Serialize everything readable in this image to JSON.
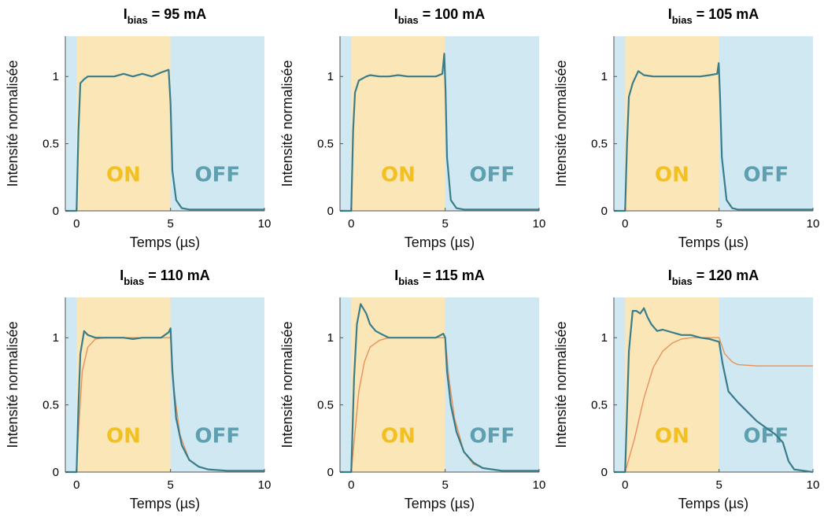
{
  "figure": {
    "title_prefix": "I",
    "title_sub": "bias",
    "colors": {
      "on_region": "#fbe6b8",
      "off_region": "#cfe8f1",
      "measured": "#3a7d8a",
      "model": "#e8915b",
      "on_text": "#f3c021",
      "off_text": "#5e9fb0"
    }
  },
  "chart_data": [
    {
      "type": "line",
      "title": "I bias = 95 mA",
      "title_value": "= 95 mA",
      "xlabel": "Temps (µs)",
      "ylabel": "Intensité normalisée",
      "xlim": [
        -0.6,
        10
      ],
      "ylim": [
        0,
        1.3
      ],
      "xticks": [
        "0",
        "5",
        "10"
      ],
      "yticks": [
        "0",
        "0.5",
        "1"
      ],
      "grid": false,
      "regions": [
        {
          "label": "ON",
          "x": [
            0,
            5
          ]
        },
        {
          "label": "OFF",
          "x": [
            5,
            10
          ]
        }
      ],
      "series": [
        {
          "x": [
            -0.6,
            0,
            0.1,
            0.2,
            0.4,
            0.6,
            1,
            1.5,
            2,
            2.5,
            3,
            3.5,
            4,
            4.5,
            4.9,
            5,
            5.1,
            5.3,
            5.6,
            6,
            7,
            8,
            10
          ],
          "values": [
            0,
            0,
            0.6,
            0.95,
            0.98,
            1.0,
            1.0,
            1.0,
            1.0,
            1.02,
            1.0,
            1.02,
            1.0,
            1.03,
            1.05,
            0.8,
            0.3,
            0.08,
            0.02,
            0.01,
            0.01,
            0.01,
            0.01
          ]
        }
      ]
    },
    {
      "type": "line",
      "title": "I bias = 100 mA",
      "title_value": "= 100 mA",
      "xlabel": "Temps (µs)",
      "ylabel": "Intensité normalisée",
      "xlim": [
        -0.6,
        10
      ],
      "ylim": [
        0,
        1.3
      ],
      "xticks": [
        "0",
        "5",
        "10"
      ],
      "yticks": [
        "0",
        "0.5",
        "1"
      ],
      "grid": false,
      "regions": [
        {
          "label": "ON",
          "x": [
            0,
            5
          ]
        },
        {
          "label": "OFF",
          "x": [
            5,
            10
          ]
        }
      ],
      "series": [
        {
          "x": [
            -0.6,
            0,
            0.1,
            0.2,
            0.4,
            0.8,
            1,
            1.5,
            2,
            2.5,
            3,
            3.5,
            4,
            4.5,
            4.85,
            4.95,
            5.02,
            5.1,
            5.3,
            5.6,
            6,
            7,
            8,
            10
          ],
          "values": [
            0,
            0,
            0.6,
            0.88,
            0.97,
            1.0,
            1.01,
            1.0,
            1.0,
            1.01,
            1.0,
            1.0,
            1.0,
            1.0,
            1.02,
            1.17,
            0.9,
            0.4,
            0.08,
            0.02,
            0.01,
            0.01,
            0.01,
            0.01
          ]
        }
      ]
    },
    {
      "type": "line",
      "title": "I bias = 105 mA",
      "title_value": "= 105 mA",
      "xlabel": "Temps (µs)",
      "ylabel": "Intensité normalisée",
      "xlim": [
        -0.6,
        10
      ],
      "ylim": [
        0,
        1.3
      ],
      "xticks": [
        "0",
        "5",
        "10"
      ],
      "yticks": [
        "0",
        "0.5",
        "1"
      ],
      "grid": false,
      "regions": [
        {
          "label": "ON",
          "x": [
            0,
            5
          ]
        },
        {
          "label": "OFF",
          "x": [
            5,
            10
          ]
        }
      ],
      "series": [
        {
          "x": [
            -0.6,
            0,
            0.1,
            0.2,
            0.4,
            0.7,
            1,
            1.5,
            2,
            2.5,
            3,
            3.5,
            4,
            4.5,
            4.9,
            4.98,
            5.05,
            5.15,
            5.4,
            5.7,
            6,
            7,
            8,
            10
          ],
          "values": [
            0,
            0,
            0.5,
            0.85,
            0.95,
            1.04,
            1.01,
            1.0,
            1.0,
            1.0,
            1.0,
            1.0,
            1.0,
            1.01,
            1.02,
            1.1,
            0.85,
            0.4,
            0.08,
            0.02,
            0.01,
            0.01,
            0.01,
            0.01
          ]
        }
      ]
    },
    {
      "type": "line",
      "title": "I bias = 110 mA",
      "title_value": "= 110 mA",
      "xlabel": "Temps (µs)",
      "ylabel": "Intensité normalisée",
      "xlim": [
        -0.6,
        10
      ],
      "ylim": [
        0,
        1.3
      ],
      "xticks": [
        "0",
        "5",
        "10"
      ],
      "yticks": [
        "0",
        "0.5",
        "1"
      ],
      "grid": false,
      "regions": [
        {
          "label": "ON",
          "x": [
            0,
            5
          ]
        },
        {
          "label": "OFF",
          "x": [
            5,
            10
          ]
        }
      ],
      "series": [
        {
          "x": [
            -0.6,
            0,
            0.1,
            0.2,
            0.4,
            0.6,
            1,
            1.5,
            2,
            2.5,
            3,
            3.5,
            4,
            4.5,
            4.9,
            5.0,
            5.1,
            5.3,
            5.6,
            6,
            6.5,
            7,
            8,
            10
          ],
          "values": [
            0,
            0,
            0.5,
            0.88,
            1.05,
            1.02,
            1.0,
            1.0,
            1.0,
            1.0,
            0.99,
            1.0,
            1.0,
            1.0,
            1.04,
            1.07,
            0.75,
            0.4,
            0.2,
            0.09,
            0.04,
            0.02,
            0.01,
            0.01
          ]
        },
        {
          "x": [
            -0.6,
            0,
            0.1,
            0.3,
            0.6,
            1,
            1.5,
            2,
            3,
            4,
            5,
            5.2,
            5.5,
            6,
            6.5,
            7,
            8,
            10
          ],
          "values": [
            0,
            0,
            0.3,
            0.75,
            0.93,
            0.99,
            1.0,
            1.0,
            1.0,
            1.0,
            1.0,
            0.6,
            0.28,
            0.09,
            0.04,
            0.02,
            0.01,
            0.01
          ]
        }
      ]
    },
    {
      "type": "line",
      "title": "I bias = 115 mA",
      "title_value": "= 115 mA",
      "xlabel": "Temps (µs)",
      "ylabel": "Intensité normalisée",
      "xlim": [
        -0.6,
        10
      ],
      "ylim": [
        0,
        1.3
      ],
      "xticks": [
        "0",
        "5",
        "10"
      ],
      "yticks": [
        "0",
        "0.5",
        "1"
      ],
      "grid": false,
      "regions": [
        {
          "label": "ON",
          "x": [
            0,
            5
          ]
        },
        {
          "label": "OFF",
          "x": [
            5,
            10
          ]
        }
      ],
      "series": [
        {
          "x": [
            -0.6,
            0,
            0.15,
            0.3,
            0.5,
            0.8,
            1.0,
            1.3,
            1.7,
            2.0,
            2.5,
            3,
            3.5,
            4,
            4.5,
            4.9,
            5.0,
            5.1,
            5.3,
            5.6,
            6,
            6.5,
            7,
            8,
            10
          ],
          "values": [
            0,
            0,
            0.7,
            1.1,
            1.25,
            1.18,
            1.1,
            1.05,
            1.02,
            1.0,
            1.0,
            1.0,
            1.0,
            1.0,
            1.0,
            1.03,
            1.0,
            0.75,
            0.5,
            0.3,
            0.15,
            0.07,
            0.03,
            0.01,
            0.01
          ]
        },
        {
          "x": [
            -0.6,
            0,
            0.2,
            0.4,
            0.7,
            1.0,
            1.5,
            2.0,
            3,
            4,
            5,
            5.2,
            5.5,
            6,
            6.5,
            7,
            8,
            10
          ],
          "values": [
            0,
            0,
            0.3,
            0.6,
            0.82,
            0.93,
            0.98,
            1.0,
            1.0,
            1.0,
            1.0,
            0.7,
            0.4,
            0.15,
            0.06,
            0.03,
            0.01,
            0.01
          ]
        }
      ]
    },
    {
      "type": "line",
      "title": "I bias = 120 mA",
      "title_value": "= 120 mA",
      "xlabel": "Temps (µs)",
      "ylabel": "Intensité normalisée",
      "xlim": [
        -0.6,
        10
      ],
      "ylim": [
        0,
        1.3
      ],
      "xticks": [
        "0",
        "5",
        "10"
      ],
      "yticks": [
        "0",
        "0.5",
        "1"
      ],
      "grid": false,
      "regions": [
        {
          "label": "ON",
          "x": [
            0,
            5
          ]
        },
        {
          "label": "OFF",
          "x": [
            5,
            10
          ]
        }
      ],
      "series": [
        {
          "x": [
            -0.6,
            0,
            0.2,
            0.4,
            0.6,
            0.8,
            1.0,
            1.2,
            1.4,
            1.7,
            2.0,
            2.5,
            3,
            3.5,
            4,
            4.5,
            5.0,
            5.2,
            5.5,
            6,
            6.5,
            7,
            7.5,
            8,
            8.4,
            8.7,
            9,
            9.5,
            10
          ],
          "values": [
            0,
            0,
            0.9,
            1.2,
            1.2,
            1.18,
            1.22,
            1.15,
            1.1,
            1.05,
            1.06,
            1.04,
            1.02,
            1.02,
            1.0,
            0.99,
            0.97,
            0.8,
            0.6,
            0.52,
            0.45,
            0.38,
            0.33,
            0.28,
            0.22,
            0.08,
            0.02,
            0.01,
            0.0
          ]
        },
        {
          "x": [
            -0.6,
            0,
            0.5,
            1.0,
            1.5,
            2.0,
            2.5,
            3,
            3.5,
            4,
            5,
            5.3,
            5.7,
            6,
            7,
            8,
            10
          ],
          "values": [
            0,
            0,
            0.25,
            0.55,
            0.78,
            0.9,
            0.96,
            0.99,
            1.0,
            1.0,
            1.0,
            0.88,
            0.82,
            0.8,
            0.79,
            0.79,
            0.79
          ]
        }
      ]
    }
  ]
}
